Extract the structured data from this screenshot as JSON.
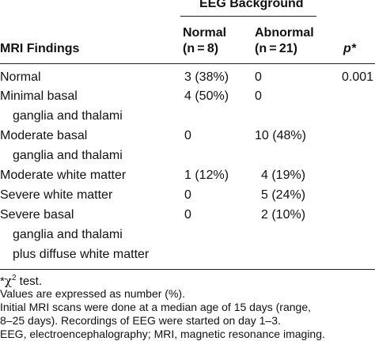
{
  "header": {
    "group_title": "EEG Background",
    "col_findings": "MRI Findings",
    "col_normal": "Normal",
    "col_normal_n": "(n = 8)",
    "col_abnormal": "Abnormal",
    "col_abnormal_n": "(n = 21)",
    "col_p": "p*"
  },
  "rows": [
    {
      "label": [
        "Normal"
      ],
      "normal": "3 (38%)",
      "abnormal": "0",
      "p": "0.001"
    },
    {
      "label": [
        "Minimal basal",
        "ganglia and thalami"
      ],
      "normal": "4 (50%)",
      "abnormal": "0",
      "p": ""
    },
    {
      "label": [
        "Moderate basal",
        "ganglia and thalami"
      ],
      "normal": "0",
      "abnormal": "10 (48%)",
      "p": ""
    },
    {
      "label": [
        "Moderate white matter"
      ],
      "normal": "1 (12%)",
      "abnormal": "4 (19%)",
      "p": ""
    },
    {
      "label": [
        "Severe white matter"
      ],
      "normal": "0",
      "abnormal": "5 (24%)",
      "p": ""
    },
    {
      "label": [
        "Severe basal",
        "ganglia and thalami",
        "plus diffuse white matter"
      ],
      "normal": "0",
      "abnormal": "2 (10%)",
      "p": ""
    }
  ],
  "notes": {
    "chi_star": "*",
    "chi_symbol": "χ",
    "chi_exp": "2",
    "chi_text": " test.",
    "values": "Values are expressed as number (%).",
    "mri_line1": "Initial MRI scans were done at a median age of 15 days (range,",
    "mri_line2": "8–25 days). Recordings of EEG were started on day 1–3.",
    "abbrev": "EEG, electroencephalography; MRI, magnetic resonance imaging."
  }
}
